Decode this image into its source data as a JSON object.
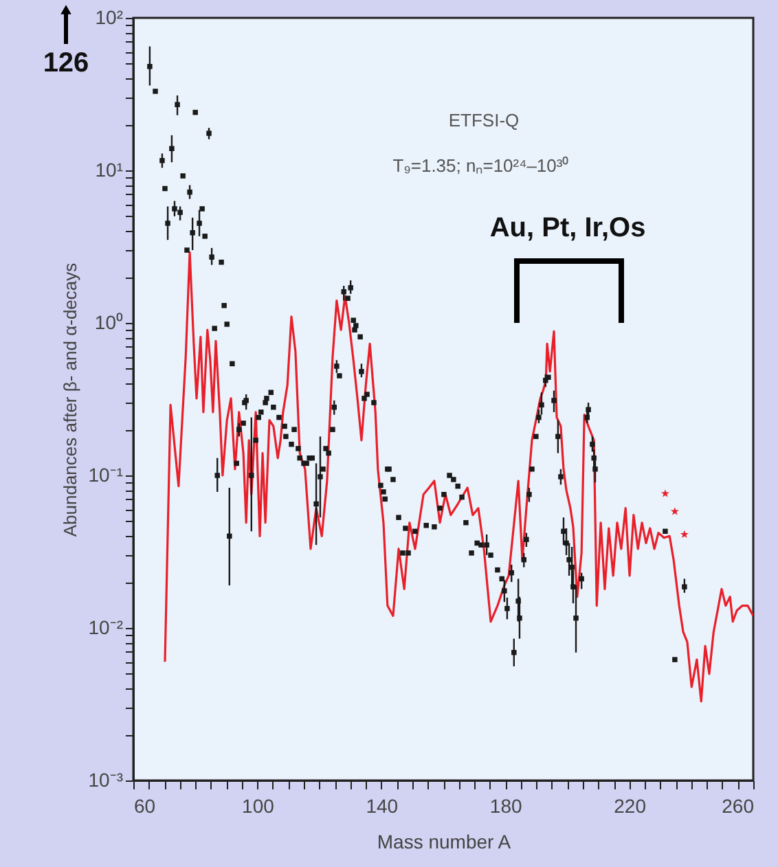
{
  "chart_data": {
    "type": "line",
    "xlabel": "Mass number A",
    "ylabel": "Abundances after β- and α-decays",
    "log": "y",
    "grid": false,
    "xlim": [
      60,
      260
    ],
    "xticks": [
      60,
      {
        "value": 65,
        "label": null
      },
      {
        "value": 70,
        "label": null
      },
      {
        "value": 75,
        "label": null
      },
      {
        "value": 80,
        "label": null
      },
      {
        "value": 85,
        "label": null
      },
      {
        "value": 90,
        "label": null
      },
      {
        "value": 95,
        "label": null
      },
      100,
      {
        "value": 105,
        "label": null
      },
      {
        "value": 110,
        "label": null
      },
      {
        "value": 115,
        "label": null
      },
      {
        "value": 120,
        "label": null
      },
      {
        "value": 125,
        "label": null
      },
      {
        "value": 130,
        "label": null
      },
      {
        "value": 135,
        "label": null
      },
      140,
      {
        "value": 145,
        "label": null
      },
      {
        "value": 150,
        "label": null
      },
      {
        "value": 155,
        "label": null
      },
      {
        "value": 160,
        "label": null
      },
      {
        "value": 165,
        "label": null
      },
      {
        "value": 170,
        "label": null
      },
      {
        "value": 175,
        "label": null
      },
      180,
      {
        "value": 185,
        "label": null
      },
      {
        "value": 190,
        "label": null
      },
      {
        "value": 195,
        "label": null
      },
      {
        "value": 200,
        "label": null
      },
      {
        "value": 205,
        "label": null
      },
      {
        "value": 210,
        "label": null
      },
      {
        "value": 215,
        "label": null
      },
      220,
      {
        "value": 225,
        "label": null
      },
      {
        "value": 230,
        "label": null
      },
      {
        "value": 235,
        "label": null
      },
      {
        "value": 240,
        "label": null
      },
      {
        "value": 245,
        "label": null
      },
      {
        "value": 250,
        "label": null
      },
      {
        "value": 255,
        "label": null
      },
      260
    ],
    "ylim": [
      0.001,
      100
    ],
    "yticks": [
      {
        "value": 0.001,
        "label": "10⁻³"
      },
      {
        "value": 0.002,
        "label": null
      },
      {
        "value": 0.003,
        "label": null
      },
      {
        "value": 0.004,
        "label": null
      },
      {
        "value": 0.005,
        "label": null
      },
      {
        "value": 0.006,
        "label": null
      },
      {
        "value": 0.007,
        "label": null
      },
      {
        "value": 0.008,
        "label": null
      },
      {
        "value": 0.009,
        "label": null
      },
      {
        "value": 0.01,
        "label": "10⁻²"
      },
      {
        "value": 0.02,
        "label": null
      },
      {
        "value": 0.03,
        "label": null
      },
      {
        "value": 0.04,
        "label": null
      },
      {
        "value": 0.05,
        "label": null
      },
      {
        "value": 0.06,
        "label": null
      },
      {
        "value": 0.07,
        "label": null
      },
      {
        "value": 0.08,
        "label": null
      },
      {
        "value": 0.09,
        "label": null
      },
      {
        "value": 0.1,
        "label": "10⁻¹"
      },
      {
        "value": 0.2,
        "label": null
      },
      {
        "value": 0.3,
        "label": null
      },
      {
        "value": 0.4,
        "label": null
      },
      {
        "value": 0.5,
        "label": null
      },
      {
        "value": 0.6,
        "label": null
      },
      {
        "value": 0.7,
        "label": null
      },
      {
        "value": 0.8,
        "label": null
      },
      {
        "value": 0.9,
        "label": null
      },
      {
        "value": 1,
        "label": "10⁰"
      },
      {
        "value": 2,
        "label": null
      },
      {
        "value": 3,
        "label": null
      },
      {
        "value": 4,
        "label": null
      },
      {
        "value": 5,
        "label": null
      },
      {
        "value": 6,
        "label": null
      },
      {
        "value": 7,
        "label": null
      },
      {
        "value": 8,
        "label": null
      },
      {
        "value": 9,
        "label": null
      },
      {
        "value": 10,
        "label": "10¹"
      },
      {
        "value": 20,
        "label": null
      },
      {
        "value": 30,
        "label": null
      },
      {
        "value": 40,
        "label": null
      },
      {
        "value": 50,
        "label": null
      },
      {
        "value": 60,
        "label": null
      },
      {
        "value": 70,
        "label": null
      },
      {
        "value": 80,
        "label": null
      },
      {
        "value": 90,
        "label": null
      },
      {
        "value": 100,
        "label": "10²"
      }
    ],
    "annotations": [
      "126",
      "ETFSI-Q",
      "T₉=1.35; nₙ=10²⁴–10³⁰",
      "Au, Pt, Ir,Os"
    ],
    "series": [
      {
        "color": "#e8202a",
        "marker": "none",
        "line_style": "solid",
        "x": [
          70.2,
          72.0,
          74.6,
          76.9,
          78.2,
          79.5,
          80.4,
          81.7,
          82.6,
          83.9,
          84.8,
          85.7,
          86.6,
          87.9,
          88.8,
          90.2,
          91.5,
          92.8,
          94.1,
          95.5,
          96.4,
          97.3,
          98.1,
          99.5,
          100.8,
          101.7,
          102.6,
          103.9,
          105.2,
          106.6,
          107.5,
          108.3,
          109.7,
          111.0,
          112.3,
          113.7,
          115.4,
          117.2,
          119.0,
          120.8,
          122.5,
          124.3,
          125.6,
          127.0,
          128.3,
          129.6,
          131.0,
          132.3,
          133.6,
          135.0,
          136.3,
          138.1,
          138.9,
          140.7,
          142.0,
          143.8,
          145.6,
          147.4,
          149.1,
          150.9,
          152.2,
          153.6,
          155.4,
          157.1,
          158.9,
          160.7,
          162.4,
          164.7,
          167.8,
          169.5,
          171.3,
          173.1,
          175.3,
          177.5,
          179.7,
          181.1,
          182.4,
          184.2,
          185.5,
          186.8,
          188.6,
          189.9,
          191.3,
          192.2,
          193.1,
          193.5,
          194.4,
          195.7,
          196.6,
          197.9,
          198.8,
          199.7,
          201.0,
          201.9,
          203.2,
          204.6,
          205.5,
          206.8,
          208.6,
          209.5,
          210.8,
          212.1,
          213.4,
          214.8,
          216.1,
          217.4,
          218.8,
          220.1,
          221.4,
          222.8,
          224.1,
          225.4,
          226.7,
          228.1,
          229.4,
          231.2,
          233.0,
          234.3,
          236.1,
          237.4,
          238.7,
          240.1,
          241.8,
          243.2,
          244.5,
          245.8,
          247.2,
          248.5,
          249.8,
          251.1,
          252.5,
          253.4,
          254.7,
          256.5,
          258.2,
          260.0
        ],
        "values": [
          0.006,
          0.29,
          0.085,
          0.6,
          2.9,
          0.73,
          0.32,
          0.81,
          0.26,
          0.9,
          0.57,
          0.26,
          0.76,
          0.26,
          0.1,
          0.23,
          0.32,
          0.11,
          0.26,
          0.14,
          0.049,
          0.17,
          0.075,
          0.26,
          0.04,
          0.14,
          0.049,
          0.23,
          0.21,
          0.13,
          0.17,
          0.26,
          0.39,
          1.1,
          0.65,
          0.14,
          0.11,
          0.033,
          0.061,
          0.04,
          0.092,
          0.6,
          1.4,
          0.9,
          1.5,
          1.0,
          0.57,
          0.32,
          0.17,
          0.39,
          0.73,
          0.26,
          0.11,
          0.049,
          0.014,
          0.012,
          0.033,
          0.018,
          0.049,
          0.033,
          0.049,
          0.075,
          0.083,
          0.092,
          0.049,
          0.075,
          0.055,
          0.065,
          0.083,
          0.055,
          0.061,
          0.033,
          0.011,
          0.014,
          0.019,
          0.022,
          0.04,
          0.092,
          0.028,
          0.061,
          0.17,
          0.23,
          0.32,
          0.36,
          0.42,
          0.73,
          0.48,
          0.88,
          0.24,
          0.21,
          0.11,
          0.08,
          0.061,
          0.046,
          0.016,
          0.031,
          0.25,
          0.21,
          0.17,
          0.014,
          0.049,
          0.018,
          0.045,
          0.022,
          0.049,
          0.033,
          0.061,
          0.022,
          0.055,
          0.033,
          0.049,
          0.036,
          0.045,
          0.033,
          0.042,
          0.039,
          0.04,
          0.028,
          0.014,
          0.0094,
          0.0081,
          0.0041,
          0.0062,
          0.0033,
          0.0076,
          0.005,
          0.0094,
          0.013,
          0.018,
          0.014,
          0.016,
          0.011,
          0.013,
          0.014,
          0.014,
          0.012
        ]
      },
      {
        "type": "scatter",
        "color": "#1a1a1a",
        "marker": "square",
        "x": [
          65.3,
          67.1,
          74.2,
          80.0,
          84.4,
          69.3,
          72.4,
          70.2,
          76.0,
          78.2,
          71.1,
          73.3,
          75.1,
          77.3,
          79.1,
          81.3,
          82.2,
          83.1,
          85.3,
          88.4,
          89.3,
          90.2,
          86.2,
          91.9,
          96.4,
          87.1,
          91.0,
          93.3,
          94.1,
          95.5,
          95.9,
          98.1,
          99.5,
          100.4,
          101.2,
          102.6,
          103.0,
          104.4,
          105.2,
          107.0,
          108.8,
          109.2,
          111.0,
          111.9,
          113.2,
          113.7,
          115.0,
          115.9,
          116.8,
          117.7,
          119.0,
          120.3,
          121.2,
          122.1,
          123.0,
          124.3,
          124.8,
          125.6,
          126.5,
          127.9,
          129.2,
          130.1,
          131.0,
          131.4,
          131.8,
          133.2,
          133.6,
          134.5,
          135.4,
          137.6,
          139.8,
          140.7,
          141.2,
          142.0,
          142.5,
          143.8,
          145.6,
          146.9,
          147.8,
          148.7,
          150.9,
          154.5,
          157.1,
          158.9,
          160.2,
          162.0,
          163.3,
          164.7,
          166.0,
          167.3,
          169.1,
          170.9,
          172.2,
          174.0,
          175.3,
          177.5,
          178.9,
          179.7,
          180.6,
          182.0,
          182.8,
          184.2,
          184.6,
          186.0,
          186.8,
          187.7,
          188.6,
          189.9,
          190.8,
          191.7,
          193.0,
          193.9,
          195.7,
          197.0,
          197.9,
          198.8,
          199.7,
          200.6,
          201.5,
          201.9,
          202.8,
          204.6,
          206.4,
          206.8,
          208.1,
          208.6,
          209.0,
          231.6,
          234.7,
          237.8
        ],
        "values": [
          48,
          33,
          27,
          24,
          17.5,
          11.6,
          13.9,
          7.6,
          9.2,
          7.2,
          4.5,
          5.6,
          5.3,
          3.0,
          3.9,
          4.5,
          5.6,
          3.7,
          2.7,
          2.5,
          1.3,
          0.98,
          0.92,
          0.54,
          0.31,
          0.1,
          0.04,
          0.12,
          0.2,
          0.22,
          0.3,
          0.1,
          0.17,
          0.24,
          0.26,
          0.3,
          0.32,
          0.35,
          0.28,
          0.24,
          0.21,
          0.18,
          0.16,
          0.2,
          0.15,
          0.13,
          0.12,
          0.12,
          0.13,
          0.13,
          0.065,
          0.098,
          0.11,
          0.15,
          0.14,
          0.2,
          0.28,
          0.52,
          0.45,
          1.6,
          1.45,
          1.7,
          1.04,
          0.9,
          0.96,
          0.81,
          0.48,
          0.32,
          0.34,
          0.3,
          0.086,
          0.078,
          0.07,
          0.11,
          0.11,
          0.094,
          0.053,
          0.031,
          0.045,
          0.031,
          0.043,
          0.047,
          0.046,
          0.061,
          0.075,
          0.1,
          0.094,
          0.085,
          0.072,
          0.049,
          0.031,
          0.036,
          0.035,
          0.035,
          0.03,
          0.024,
          0.021,
          0.0175,
          0.0134,
          0.023,
          0.0069,
          0.015,
          0.0116,
          0.028,
          0.038,
          0.075,
          0.11,
          0.18,
          0.24,
          0.29,
          0.42,
          0.44,
          0.31,
          0.18,
          0.098,
          0.043,
          0.036,
          0.028,
          0.025,
          0.0186,
          0.0116,
          0.021,
          0.24,
          0.27,
          0.16,
          0.13,
          0.11,
          0.043,
          0.0062,
          0.0186
        ],
        "errors": [
          [
            36,
            65
          ],
          null,
          [
            23,
            31
          ],
          null,
          [
            16,
            19
          ],
          [
            10.4,
            12.9
          ],
          [
            11.3,
            17
          ],
          null,
          null,
          [
            6.5,
            8
          ],
          [
            3.5,
            5.8
          ],
          [
            5,
            6.3
          ],
          [
            4.7,
            5.8
          ],
          null,
          [
            3,
            4.9
          ],
          [
            3.7,
            5.5
          ],
          null,
          null,
          [
            2.4,
            3.1
          ],
          null,
          null,
          null,
          null,
          null,
          [
            0.27,
            0.34
          ],
          [
            0.078,
            0.13
          ],
          [
            0.019,
            0.083
          ],
          null,
          [
            0.18,
            0.22
          ],
          null,
          null,
          [
            0.043,
            0.24
          ],
          null,
          null,
          null,
          null,
          null,
          null,
          null,
          null,
          null,
          null,
          null,
          null,
          null,
          null,
          null,
          null,
          null,
          null,
          [
            0.035,
            0.12
          ],
          [
            0.053,
            0.18
          ],
          null,
          null,
          null,
          null,
          [
            0.25,
            0.31
          ],
          [
            0.47,
            0.57
          ],
          null,
          [
            1.4,
            1.75
          ],
          null,
          [
            1.55,
            1.9
          ],
          null,
          null,
          null,
          null,
          [
            0.44,
            0.54
          ],
          null,
          null,
          null,
          null,
          null,
          null,
          null,
          null,
          null,
          null,
          null,
          null,
          null,
          null,
          null,
          null,
          null,
          null,
          null,
          null,
          null,
          null,
          null,
          null,
          null,
          null,
          [
            0.03,
            0.041
          ],
          null,
          null,
          null,
          [
            0.0148,
            0.0206
          ],
          [
            0.0114,
            0.0158
          ],
          [
            0.02,
            0.026
          ],
          [
            0.0056,
            0.0085
          ],
          [
            0.011,
            0.021
          ],
          [
            0.0085,
            0.016
          ],
          [
            0.025,
            0.031
          ],
          [
            0.034,
            0.042
          ],
          [
            0.067,
            0.083
          ],
          null,
          null,
          [
            0.22,
            0.27
          ],
          [
            0.25,
            0.35
          ],
          [
            0.38,
            0.46
          ],
          null,
          [
            0.26,
            0.36
          ],
          [
            0.14,
            0.23
          ],
          [
            0.087,
            0.11
          ],
          [
            0.035,
            0.053
          ],
          [
            0.03,
            0.045
          ],
          [
            0.022,
            0.036
          ],
          [
            0.018,
            0.034
          ],
          [
            0.0145,
            0.024
          ],
          [
            0.0069,
            0.019
          ],
          [
            0.018,
            0.023
          ],
          [
            0.22,
            0.27
          ],
          [
            0.24,
            0.3
          ],
          [
            0.143,
            0.18
          ],
          [
            0.107,
            0.148
          ],
          [
            0.09,
            0.125
          ],
          null,
          null,
          [
            0.017,
            0.021
          ]
        ]
      },
      {
        "type": "scatter",
        "color": "#e8202a",
        "marker": "star",
        "x": [
          231.6,
          234.7,
          237.8
        ],
        "values": [
          0.076,
          0.058,
          0.041
        ]
      }
    ]
  }
}
